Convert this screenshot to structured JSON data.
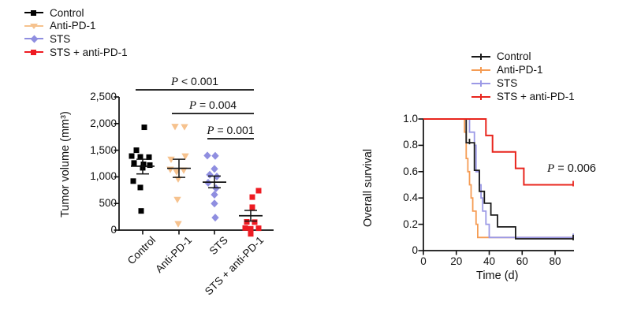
{
  "figure": {
    "background": "#ffffff",
    "text_color": "#111111"
  },
  "chart_data": [
    {
      "type": "scatter",
      "title": "",
      "ylabel": "Tumor volume (mm³)",
      "ylim": [
        0,
        2500
      ],
      "yticks": [
        [
          0,
          "0"
        ],
        [
          500,
          "500"
        ],
        [
          1000,
          "1,000"
        ],
        [
          1500,
          "1,500"
        ],
        [
          2000,
          "2,000"
        ],
        [
          2500,
          "2,500"
        ]
      ],
      "categories": [
        "Control",
        "Anti-PD-1",
        "STS",
        "STS + anti-PD-1"
      ],
      "legend_position": "top-left",
      "series": [
        {
          "name": "Control",
          "marker": "square",
          "color": "#000000",
          "points": [
            [
              2,
              1930
            ],
            [
              -8,
              1500
            ],
            [
              -14,
              1390
            ],
            [
              -3,
              1375
            ],
            [
              8,
              1370
            ],
            [
              -11,
              1260
            ],
            [
              1,
              1235
            ],
            [
              9,
              1220
            ],
            [
              0,
              1170
            ],
            [
              -12,
              920
            ],
            [
              -3,
              800
            ],
            [
              -2,
              360
            ]
          ],
          "mean": 1200,
          "sem_low": 1055,
          "sem_high": 1330
        },
        {
          "name": "Anti-PD-1",
          "marker": "triangle-down",
          "color": "#F6C28E",
          "points": [
            [
              -5,
              1945
            ],
            [
              7,
              1940
            ],
            [
              8,
              1390
            ],
            [
              -10,
              1330
            ],
            [
              -11,
              1140
            ],
            [
              6,
              1125
            ],
            [
              -3,
              1095
            ],
            [
              -1,
              960
            ],
            [
              -2,
              575
            ],
            [
              -1,
              120
            ]
          ],
          "mean": 1160,
          "sem_low": 990,
          "sem_high": 1330
        },
        {
          "name": "STS",
          "marker": "diamond",
          "color": "#8F8EE0",
          "points": [
            [
              -9,
              1400
            ],
            [
              1,
              1395
            ],
            [
              0,
              1150
            ],
            [
              -6,
              1040
            ],
            [
              3,
              1005
            ],
            [
              -8,
              890
            ],
            [
              2,
              785
            ],
            [
              0,
              665
            ],
            [
              0,
              500
            ],
            [
              1,
              235
            ]
          ],
          "mean": 900,
          "sem_low": 795,
          "sem_high": 1015
        },
        {
          "name": "STS + anti-PD-1",
          "marker": "square",
          "color": "#EE1B22",
          "points": [
            [
              10,
              740
            ],
            [
              2,
              620
            ],
            [
              2,
              430
            ],
            [
              -5,
              155
            ],
            [
              5,
              150
            ],
            [
              -7,
              40
            ],
            [
              10,
              35
            ],
            [
              0,
              25
            ],
            [
              0,
              -70
            ]
          ],
          "mean": 270,
          "sem_low": 170,
          "sem_high": 370
        }
      ],
      "significance": [
        {
          "p": "P",
          "rest": " < 0.001",
          "from": 0,
          "to": 3
        },
        {
          "p": "P",
          "rest": " = 0.004",
          "from": 1,
          "to": 3
        },
        {
          "p": "P",
          "rest": " = 0.001",
          "from": 2,
          "to": 3
        }
      ]
    },
    {
      "type": "line",
      "subtype": "kaplan-meier",
      "title": "",
      "ylabel": "Overall survival",
      "xlabel": "Time (d)",
      "ylim": [
        0,
        1.0
      ],
      "xlim": [
        0,
        91
      ],
      "yticks": [
        [
          0,
          "0"
        ],
        [
          0.2,
          "0.2"
        ],
        [
          0.4,
          "0.4"
        ],
        [
          0.6,
          "0.6"
        ],
        [
          0.8,
          "0.8"
        ],
        [
          1.0,
          "1.0"
        ]
      ],
      "xticks": [
        [
          0,
          "0"
        ],
        [
          20,
          "20"
        ],
        [
          40,
          "40"
        ],
        [
          60,
          "60"
        ],
        [
          80,
          "80"
        ]
      ],
      "legend_position": "top-right-inside",
      "annotation": {
        "p": "P",
        "rest": " = 0.006"
      },
      "series": [
        {
          "name": "Anti-PD-1",
          "color": "#F59C54",
          "points": [
            [
              0,
              1
            ],
            [
              25,
              1
            ],
            [
              25,
              0.9
            ],
            [
              26,
              0.9
            ],
            [
              26,
              0.7
            ],
            [
              27,
              0.7
            ],
            [
              27,
              0.6
            ],
            [
              28,
              0.6
            ],
            [
              28,
              0.5
            ],
            [
              29,
              0.5
            ],
            [
              29,
              0.4
            ],
            [
              30,
              0.4
            ],
            [
              30,
              0.3
            ],
            [
              32,
              0.3
            ],
            [
              32,
              0.2
            ],
            [
              33,
              0.2
            ],
            [
              33,
              0.1
            ],
            [
              91,
              0.1
            ]
          ],
          "censor_ticks": []
        },
        {
          "name": "STS",
          "color": "#9B99E6",
          "points": [
            [
              0,
              1
            ],
            [
              28,
              1
            ],
            [
              28,
              0.9
            ],
            [
              31,
              0.9
            ],
            [
              31,
              0.8
            ],
            [
              32,
              0.8
            ],
            [
              32,
              0.6
            ],
            [
              34,
              0.6
            ],
            [
              34,
              0.5
            ],
            [
              35,
              0.5
            ],
            [
              35,
              0.4
            ],
            [
              36,
              0.4
            ],
            [
              36,
              0.3
            ],
            [
              38,
              0.3
            ],
            [
              38,
              0.2
            ],
            [
              40,
              0.2
            ],
            [
              40,
              0.1
            ],
            [
              91,
              0.1
            ]
          ],
          "censor_ticks": [
            [
              91,
              0.1
            ]
          ]
        },
        {
          "name": "Control",
          "color": "#1A1A1A",
          "points": [
            [
              0,
              1
            ],
            [
              26,
              1
            ],
            [
              26,
              0.82
            ],
            [
              31,
              0.82
            ],
            [
              31,
              0.61
            ],
            [
              34,
              0.61
            ],
            [
              34,
              0.45
            ],
            [
              37,
              0.45
            ],
            [
              37,
              0.36
            ],
            [
              41,
              0.36
            ],
            [
              41,
              0.27
            ],
            [
              45,
              0.27
            ],
            [
              45,
              0.18
            ],
            [
              56,
              0.18
            ],
            [
              56,
              0.09
            ],
            [
              91,
              0.09
            ]
          ],
          "censor_ticks": [
            [
              28,
              0.82
            ],
            [
              91,
              0.09
            ]
          ]
        },
        {
          "name": "STS + anti-PD-1",
          "color": "#E8251D",
          "points": [
            [
              0,
              1
            ],
            [
              38,
              1
            ],
            [
              38,
              0.875
            ],
            [
              42,
              0.875
            ],
            [
              42,
              0.75
            ],
            [
              56,
              0.75
            ],
            [
              56,
              0.625
            ],
            [
              61,
              0.625
            ],
            [
              61,
              0.5
            ],
            [
              91,
              0.5
            ]
          ],
          "censor_ticks": [
            [
              91,
              0.5
            ]
          ]
        }
      ],
      "legend_order": [
        "Control",
        "Anti-PD-1",
        "STS",
        "STS + anti-PD-1"
      ],
      "legend_colors": [
        "#1A1A1A",
        "#F59C54",
        "#9B99E6",
        "#E8251D"
      ]
    }
  ]
}
